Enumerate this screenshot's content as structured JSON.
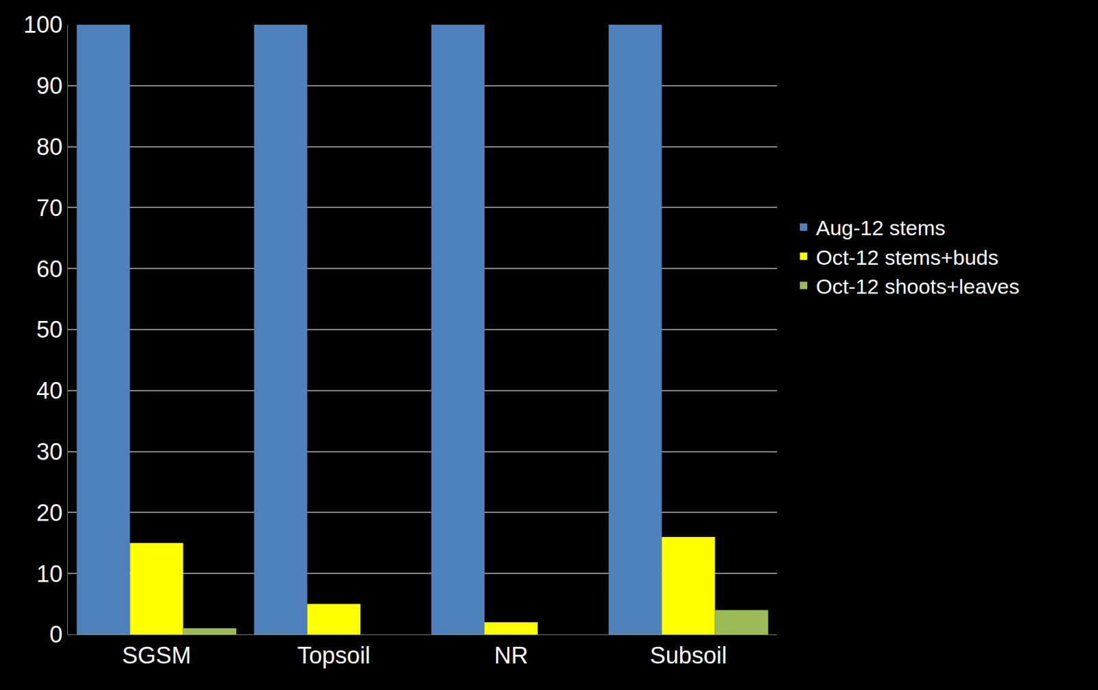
{
  "chart_data": {
    "type": "bar",
    "categories": [
      "SGSM",
      "Topsoil",
      "NR",
      "Subsoil"
    ],
    "series": [
      {
        "name": "Aug-12 stems",
        "color": "#4f81bd",
        "values": [
          100,
          100,
          100,
          100
        ]
      },
      {
        "name": "Oct-12 stems+buds",
        "color": "#ffff00",
        "values": [
          15,
          5,
          2,
          16
        ]
      },
      {
        "name": "Oct-12 shoots+leaves",
        "color": "#9bbb59",
        "values": [
          1,
          0,
          0,
          4
        ]
      }
    ],
    "ylim": [
      0,
      100
    ],
    "yticks": [
      0,
      10,
      20,
      30,
      40,
      50,
      60,
      70,
      80,
      90,
      100
    ],
    "grid": true,
    "legend": "right"
  }
}
